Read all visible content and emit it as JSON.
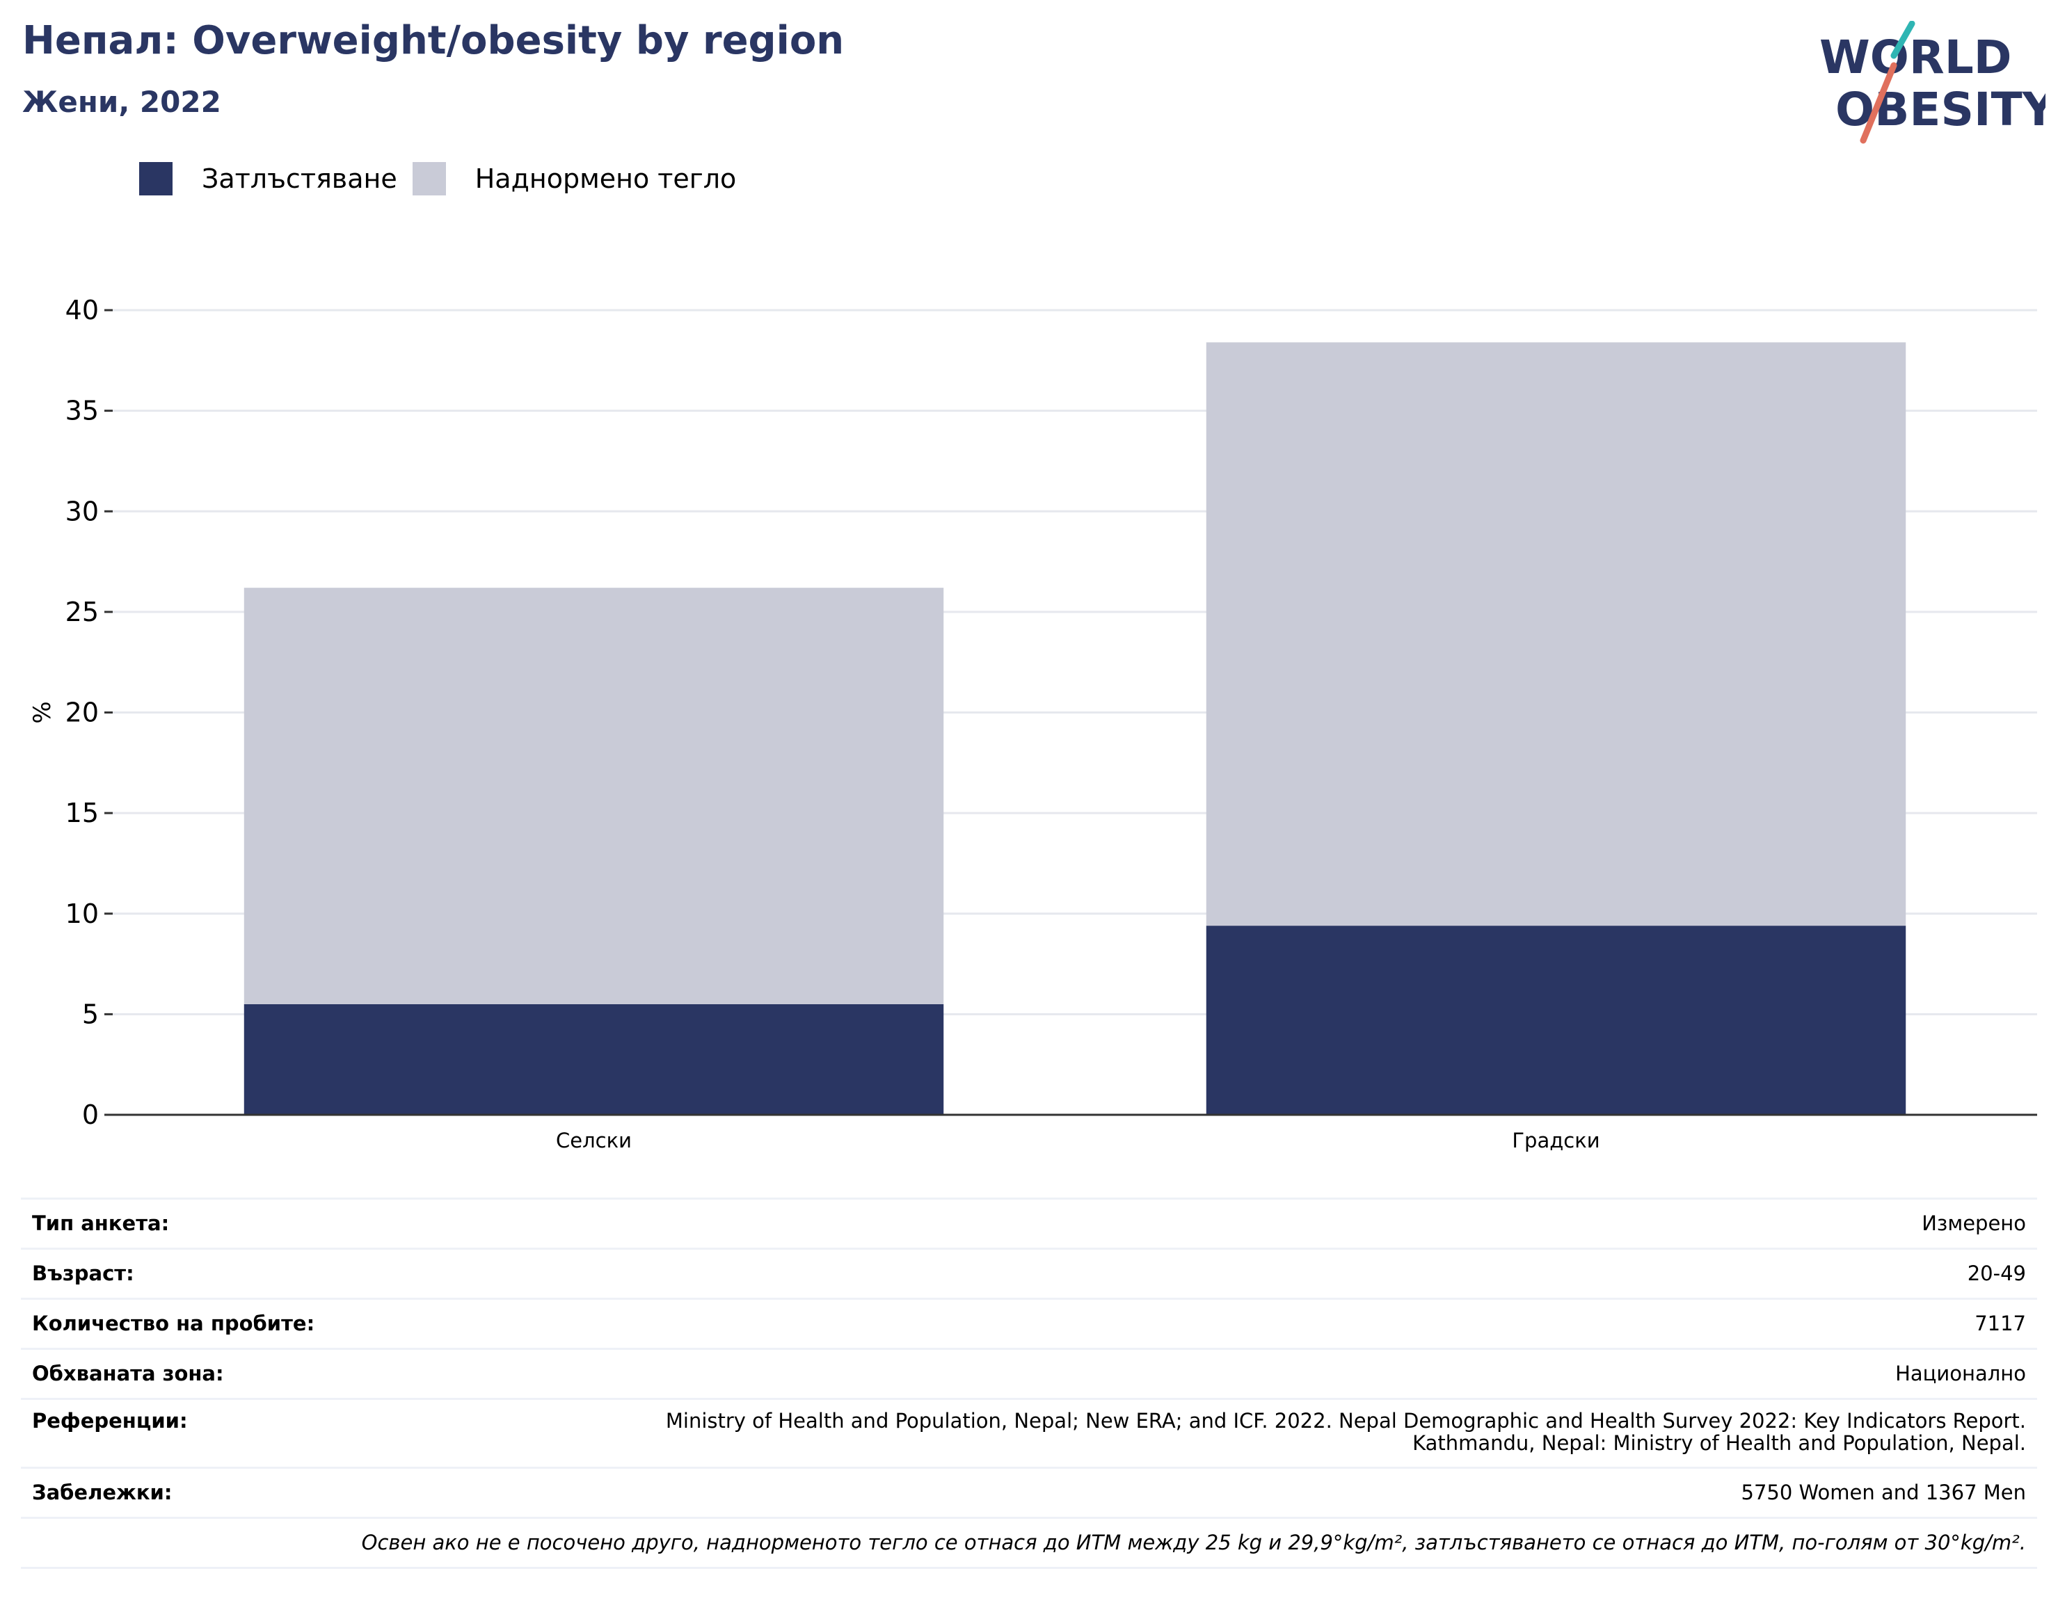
{
  "header": {
    "title": "Непал: Overweight/obesity by region",
    "subtitle": "Жени, 2022"
  },
  "logo": {
    "line1": "WORLD",
    "line2": "OBESITY"
  },
  "legend": [
    {
      "label": "Затлъстяване",
      "color": "#2a3663"
    },
    {
      "label": "Наднормено тегло",
      "color": "#c9cbd7"
    }
  ],
  "chart_data": {
    "type": "bar",
    "stacked": true,
    "categories": [
      "Селски",
      "Градски"
    ],
    "series": [
      {
        "name": "Затлъстяване",
        "color": "#2a3663",
        "values": [
          5.5,
          9.4
        ]
      },
      {
        "name": "Наднормено тегло",
        "color": "#c9cbd7",
        "values": [
          20.7,
          29.0
        ]
      }
    ],
    "ylabel": "%",
    "ylim": [
      0,
      40
    ],
    "yticks": [
      0,
      5,
      10,
      15,
      20,
      25,
      30,
      35,
      40
    ],
    "grid": true,
    "legend_position": "top-left"
  },
  "info": {
    "rows": [
      {
        "key": "Тип анкета:",
        "value": "Измерено"
      },
      {
        "key": "Възраст:",
        "value": "20-49"
      },
      {
        "key": "Количество на пробите:",
        "value": "7117"
      },
      {
        "key": "Обхваната зона:",
        "value": "Национално"
      },
      {
        "key": "Референции:",
        "value_line1": "Ministry of Health and Population, Nepal; New ERA; and ICF. 2022. Nepal Demographic and Health Survey 2022: Key Indicators Report.",
        "value_line2": "Kathmandu, Nepal: Ministry of Health and Population, Nepal."
      },
      {
        "key": "Забележки:",
        "value": "5750 Women and 1367 Men"
      }
    ],
    "note": "Освен ако не е посочено друго, наднорменото тегло се отнася до ИТМ между 25 kg и 29,9°kg/m², затлъстяването се отнася до ИТМ, по-голям от 30°kg/m²."
  }
}
